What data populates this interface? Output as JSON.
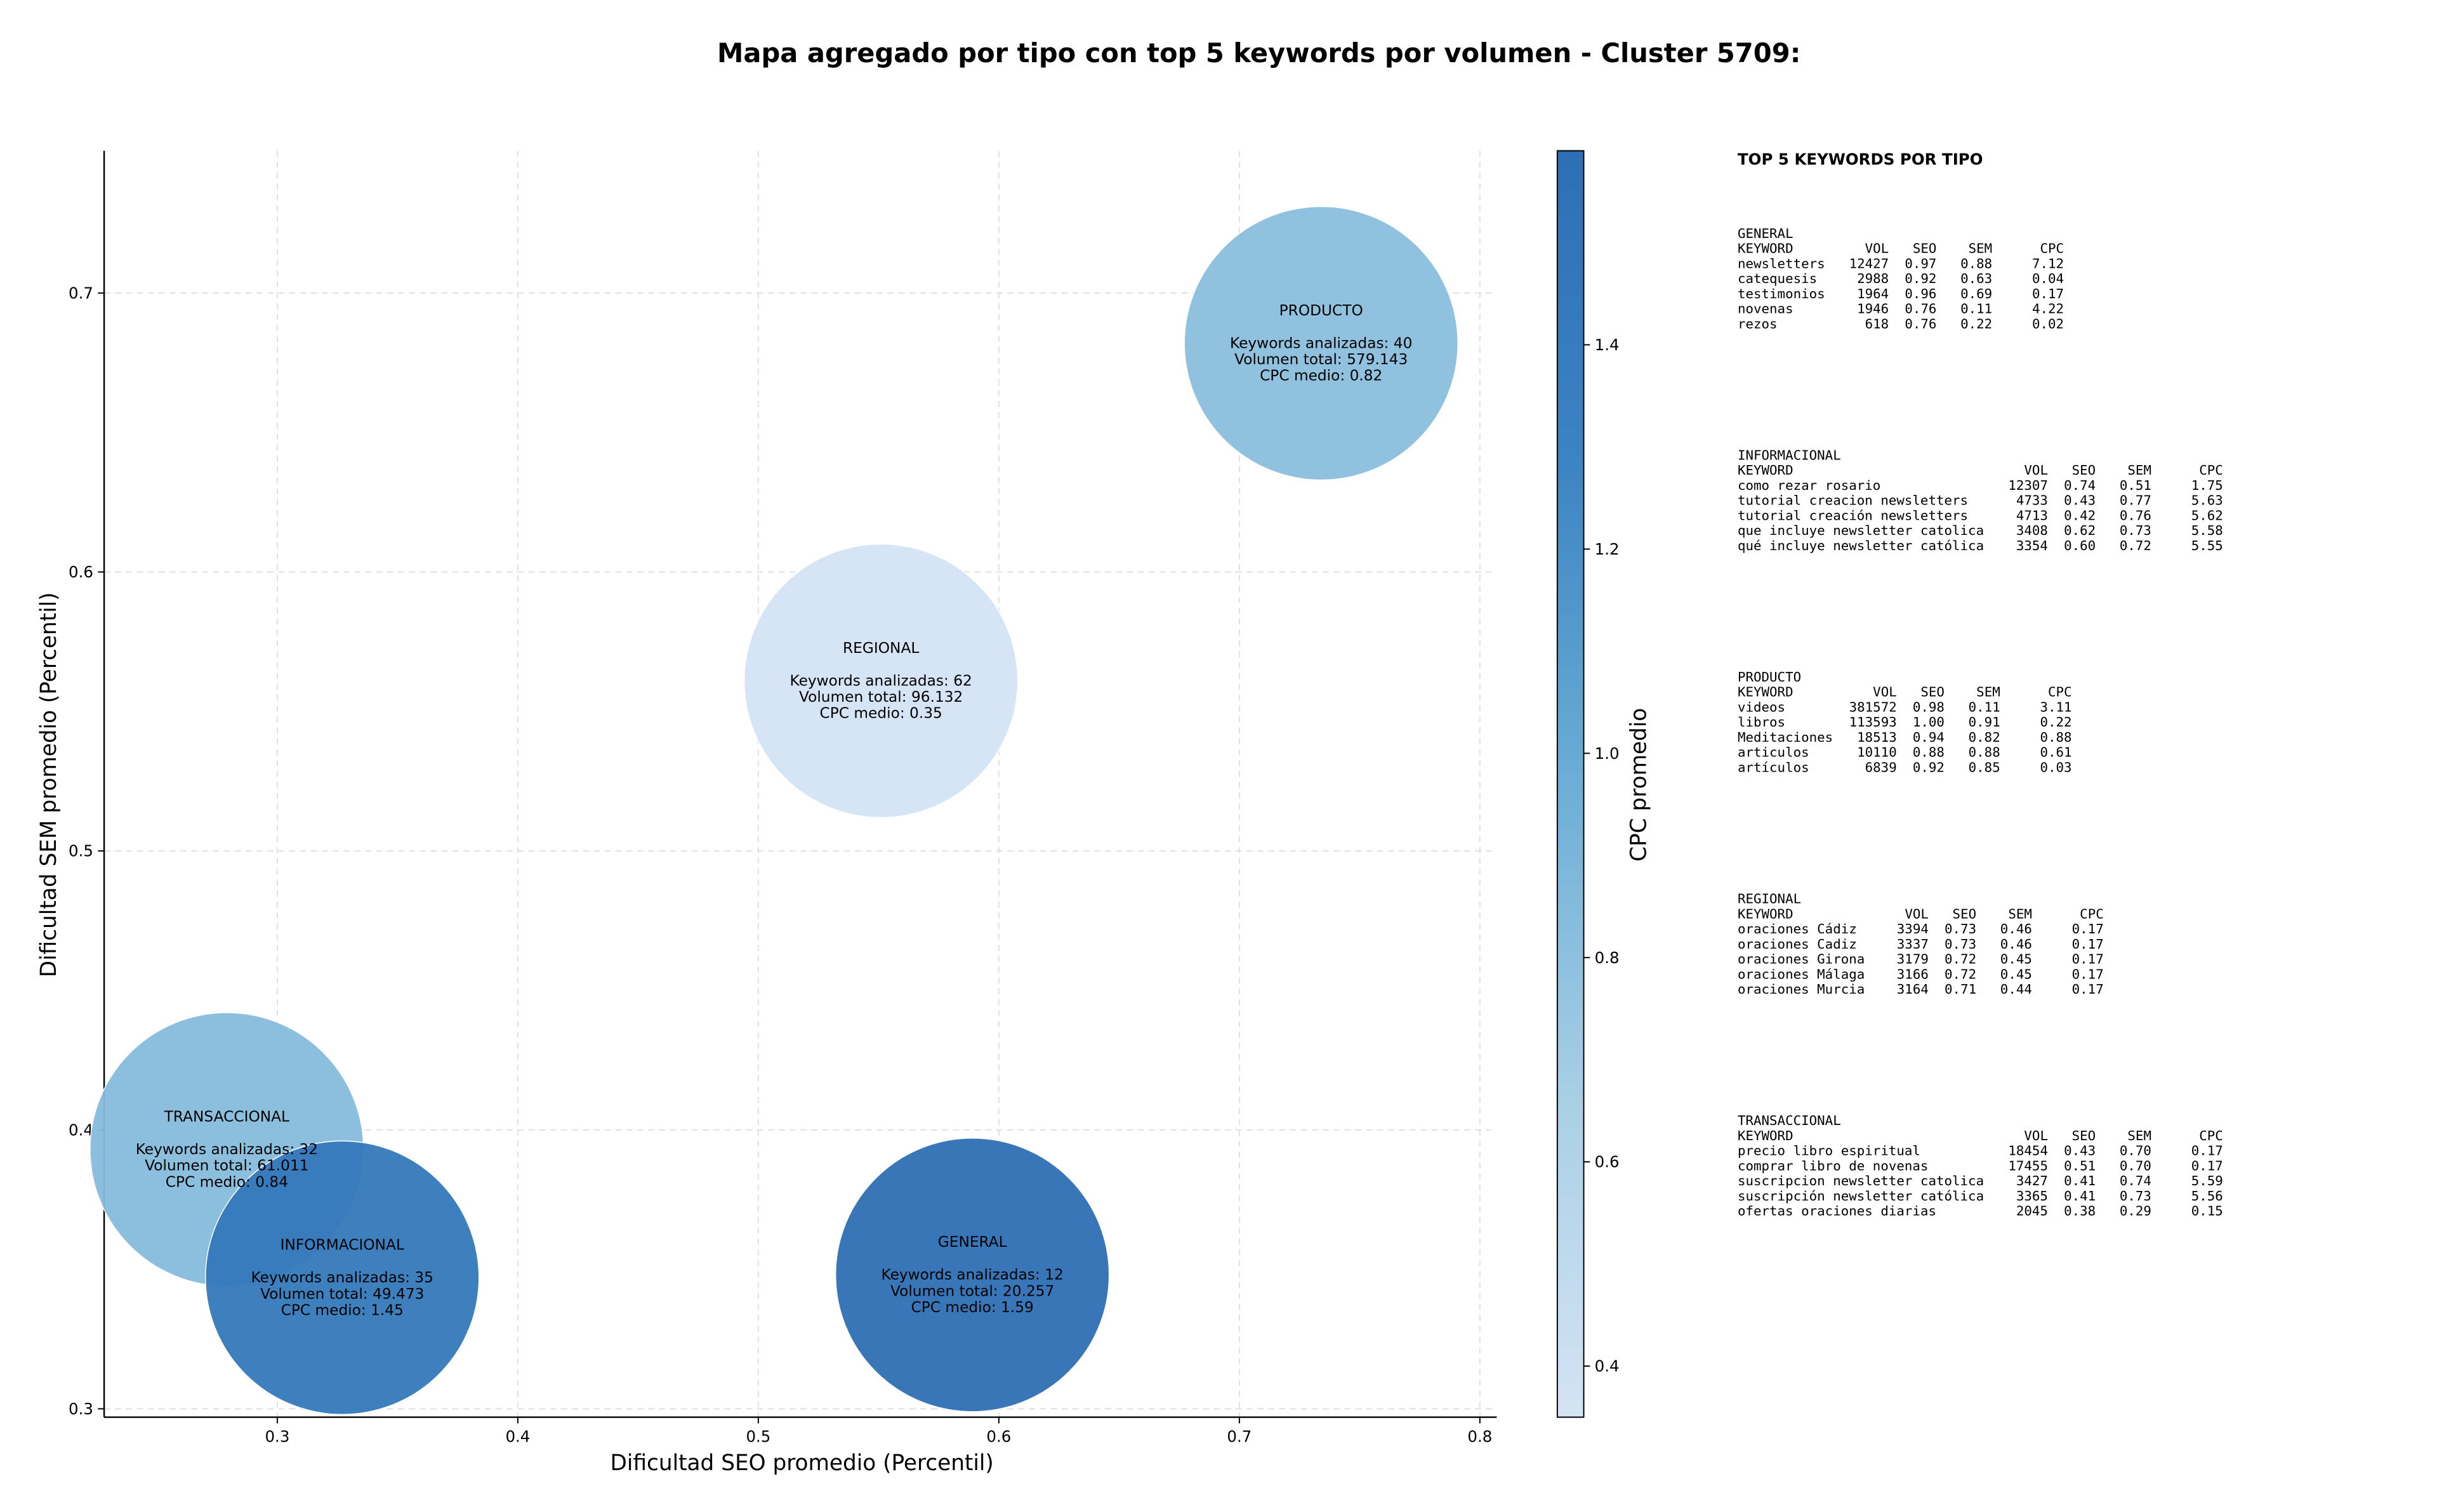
{
  "chart_data": {
    "type": "bubble",
    "title": "Mapa agregado por tipo con top 5 keywords por volumen - Cluster 5709:",
    "xlabel": "Dificultad SEO promedio (Percentil)",
    "ylabel": "Dificultad SEM promedio (Percentil)",
    "xlim": [
      0.228,
      0.807
    ],
    "ylim": [
      0.297,
      0.751
    ],
    "xticks": [
      0.3,
      0.4,
      0.5,
      0.6,
      0.7,
      0.8
    ],
    "yticks": [
      0.3,
      0.4,
      0.5,
      0.6,
      0.7
    ],
    "grid": true,
    "categories": [
      "PRODUCTO",
      "REGIONAL",
      "TRANSACCIONAL",
      "INFORMACIONAL",
      "GENERAL"
    ],
    "x": [
      0.734,
      0.551,
      0.279,
      0.327,
      0.589
    ],
    "y": [
      0.682,
      0.561,
      0.393,
      0.347,
      0.348
    ],
    "color_values": [
      0.82,
      0.35,
      0.84,
      1.45,
      1.59
    ],
    "bubble_labels": [
      [
        "Keywords analizadas: 40",
        "Volumen total: 579.143",
        "CPC medio: 0.82"
      ],
      [
        "Keywords analizadas: 62",
        "Volumen total: 96.132",
        "CPC medio: 0.35"
      ],
      [
        "Keywords analizadas: 32",
        "Volumen total: 61.011",
        "CPC medio: 0.84"
      ],
      [
        "Keywords analizadas: 35",
        "Volumen total: 49.473",
        "CPC medio: 1.45"
      ],
      [
        "Keywords analizadas: 12",
        "Volumen total: 20.257",
        "CPC medio: 1.59"
      ]
    ],
    "colorbar": {
      "label": "CPC promedio",
      "lim": [
        0.35,
        1.59
      ],
      "ticks": [
        0.4,
        0.6,
        0.8,
        {
          "value": 1,
          "label": "1.0"
        },
        1.2,
        1.4
      ],
      "colormap": [
        "#d4e4f4",
        "#a9cfe5",
        "#6caed6",
        "#3d84c2",
        "#2d6fb4"
      ]
    }
  },
  "keyword_panel": {
    "title": "TOP 5 KEYWORDS POR TIPO",
    "groups": [
      {
        "name": "GENERAL",
        "columns": [
          "KEYWORD",
          "VOL",
          "SEO",
          "SEM",
          "CPC"
        ],
        "rows": [
          [
            "newsletters",
            "12427",
            "0.97",
            "0.88",
            "7.12"
          ],
          [
            "catequesis",
            "2988",
            "0.92",
            "0.63",
            "0.04"
          ],
          [
            "testimonios",
            "1964",
            "0.96",
            "0.69",
            "0.17"
          ],
          [
            "novenas",
            "1946",
            "0.76",
            "0.11",
            "4.22"
          ],
          [
            "rezos",
            "618",
            "0.76",
            "0.22",
            "0.02"
          ]
        ]
      },
      {
        "name": "INFORMACIONAL",
        "columns": [
          "KEYWORD",
          "VOL",
          "SEO",
          "SEM",
          "CPC"
        ],
        "rows": [
          [
            "como rezar rosario",
            "12307",
            "0.74",
            "0.51",
            "1.75"
          ],
          [
            "tutorial creacion newsletters",
            "4733",
            "0.43",
            "0.77",
            "5.63"
          ],
          [
            "tutorial creación newsletters",
            "4713",
            "0.42",
            "0.76",
            "5.62"
          ],
          [
            "que incluye newsletter catolica",
            "3408",
            "0.62",
            "0.73",
            "5.58"
          ],
          [
            "qué incluye newsletter católica",
            "3354",
            "0.60",
            "0.72",
            "5.55"
          ]
        ]
      },
      {
        "name": "PRODUCTO",
        "columns": [
          "KEYWORD",
          "VOL",
          "SEO",
          "SEM",
          "CPC"
        ],
        "rows": [
          [
            "videos",
            "381572",
            "0.98",
            "0.11",
            "3.11"
          ],
          [
            "libros",
            "113593",
            "1.00",
            "0.91",
            "0.22"
          ],
          [
            "Meditaciones",
            "18513",
            "0.94",
            "0.82",
            "0.88"
          ],
          [
            "articulos",
            "10110",
            "0.88",
            "0.88",
            "0.61"
          ],
          [
            "artículos",
            "6839",
            "0.92",
            "0.85",
            "0.03"
          ]
        ]
      },
      {
        "name": "REGIONAL",
        "columns": [
          "KEYWORD",
          "VOL",
          "SEO",
          "SEM",
          "CPC"
        ],
        "rows": [
          [
            "oraciones Cádiz",
            "3394",
            "0.73",
            "0.46",
            "0.17"
          ],
          [
            "oraciones Cadiz",
            "3337",
            "0.73",
            "0.46",
            "0.17"
          ],
          [
            "oraciones Girona",
            "3179",
            "0.72",
            "0.45",
            "0.17"
          ],
          [
            "oraciones Málaga",
            "3166",
            "0.72",
            "0.45",
            "0.17"
          ],
          [
            "oraciones Murcia",
            "3164",
            "0.71",
            "0.44",
            "0.17"
          ]
        ]
      },
      {
        "name": "TRANSACCIONAL",
        "columns": [
          "KEYWORD",
          "VOL",
          "SEO",
          "SEM",
          "CPC"
        ],
        "rows": [
          [
            "precio libro espiritual",
            "18454",
            "0.43",
            "0.70",
            "0.17"
          ],
          [
            "comprar libro de novenas",
            "17455",
            "0.51",
            "0.70",
            "0.17"
          ],
          [
            "suscripcion newsletter catolica",
            "3427",
            "0.41",
            "0.74",
            "5.59"
          ],
          [
            "suscripción newsletter católica",
            "3365",
            "0.41",
            "0.73",
            "5.56"
          ],
          [
            "ofertas oraciones diarias",
            "2045",
            "0.38",
            "0.29",
            "0.15"
          ]
        ]
      }
    ]
  }
}
